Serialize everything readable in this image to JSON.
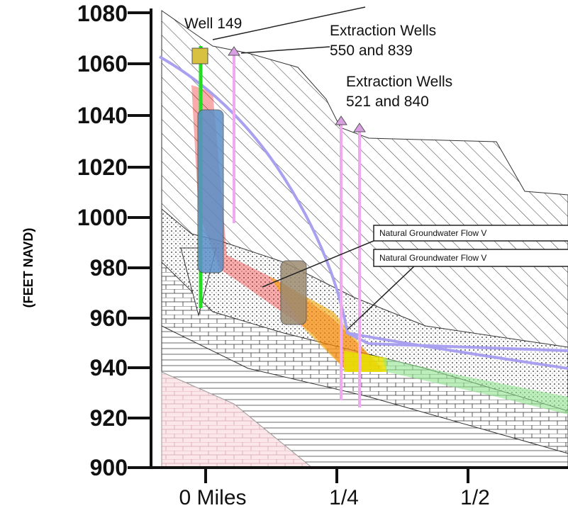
{
  "y_axis": {
    "label": "(FEET NAVD)",
    "ticks": [
      "1080",
      "1060",
      "1040",
      "1020",
      "1000",
      "980",
      "960",
      "940",
      "920",
      "900"
    ]
  },
  "x_axis": {
    "ticks": [
      "0 Miles",
      "1/4",
      "1/2"
    ]
  },
  "annotations": {
    "well_149": "Well 149",
    "extraction_a": [
      "Extraction Wells",
      "550 and 839"
    ],
    "extraction_b": [
      "Extraction Wells",
      "521 and 840"
    ],
    "flow_1": "Natural Groundwater Flow V",
    "flow_2": "Natural Groundwater Flow V"
  }
}
